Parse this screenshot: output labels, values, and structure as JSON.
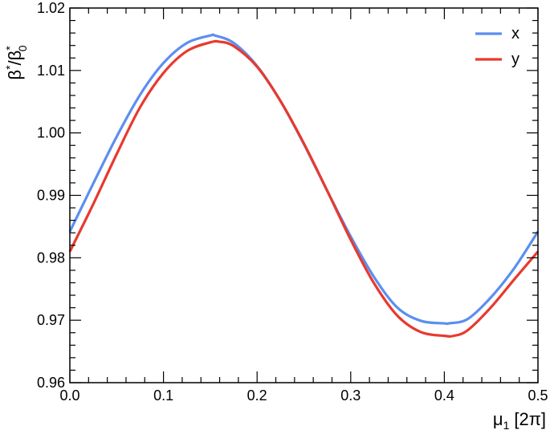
{
  "chart_data": {
    "type": "line",
    "title": "",
    "xlabel": "μ₁ [2π]",
    "ylabel": "β*/β*₀",
    "ylabel_parts": {
      "base": "β",
      "sup": "*",
      "sep": "/",
      "base2": "β",
      "sup2": "*",
      "sub2": "0"
    },
    "xlabel_parts": {
      "base": "μ",
      "sub": "1",
      "unit": "[2π]"
    },
    "xlim": [
      0.0,
      0.5
    ],
    "ylim": [
      0.96,
      1.02
    ],
    "xticks": [
      0.0,
      0.1,
      0.2,
      0.3,
      0.4,
      0.5
    ],
    "xtick_labels": [
      "0.0",
      "0.1",
      "0.2",
      "0.3",
      "0.4",
      "0.5"
    ],
    "yticks": [
      0.96,
      0.97,
      0.98,
      0.99,
      1.0,
      1.01,
      1.02
    ],
    "ytick_labels": [
      "0.96",
      "0.97",
      "0.98",
      "0.99",
      "1.00",
      "1.01",
      "1.02"
    ],
    "grid": false,
    "legend_position": "top-right",
    "series": [
      {
        "name": "x",
        "color": "#5B8FEF",
        "x": [
          0.0,
          0.025,
          0.05,
          0.075,
          0.1,
          0.125,
          0.15,
          0.155,
          0.175,
          0.2,
          0.225,
          0.25,
          0.275,
          0.3,
          0.325,
          0.35,
          0.375,
          0.4,
          0.405,
          0.425,
          0.45,
          0.475,
          0.5
        ],
        "y": [
          0.9842,
          0.9919,
          0.9994,
          1.0061,
          1.0112,
          1.0144,
          1.0156,
          1.0156,
          1.0144,
          1.0107,
          1.0051,
          0.9982,
          0.9907,
          0.9834,
          0.9769,
          0.972,
          0.9699,
          0.9695,
          0.9695,
          0.9702,
          0.9737,
          0.9784,
          0.9842
        ]
      },
      {
        "name": "y",
        "color": "#E8392F",
        "x": [
          0.0,
          0.025,
          0.05,
          0.075,
          0.1,
          0.125,
          0.15,
          0.16,
          0.175,
          0.2,
          0.225,
          0.25,
          0.275,
          0.3,
          0.325,
          0.35,
          0.375,
          0.4,
          0.41,
          0.425,
          0.45,
          0.475,
          0.5
        ],
        "y": [
          0.981,
          0.9886,
          0.9966,
          1.0041,
          1.0096,
          1.0131,
          1.0145,
          1.0146,
          1.0139,
          1.0106,
          1.0051,
          0.9983,
          0.9907,
          0.9829,
          0.9759,
          0.9707,
          0.9681,
          0.9675,
          0.9675,
          0.9684,
          0.9721,
          0.9766,
          0.981
        ]
      }
    ]
  }
}
